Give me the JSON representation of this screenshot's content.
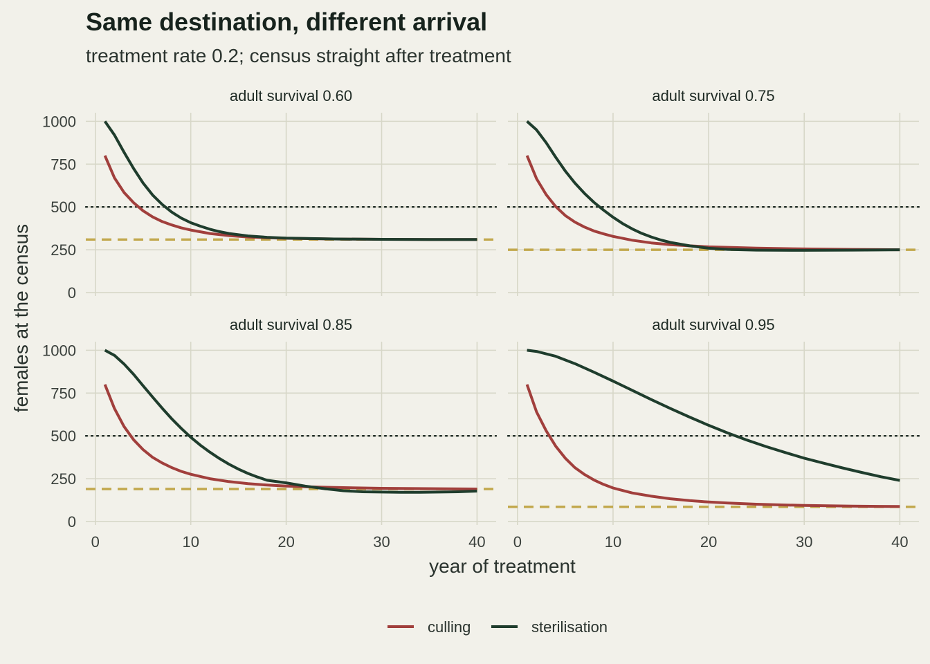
{
  "chart_data": {
    "type": "line",
    "title": "Same destination, different arrival",
    "subtitle": "treatment rate 0.2; census straight after treatment",
    "xlabel": "year of treatment",
    "ylabel": "females at the census",
    "xlim": [
      -1,
      42
    ],
    "ylim": [
      -20,
      1050
    ],
    "x_ticks": [
      0,
      10,
      20,
      30,
      40
    ],
    "y_ticks": [
      0,
      250,
      500,
      750,
      1000
    ],
    "grid": true,
    "legend_position": "bottom",
    "colors": {
      "culling": "#a13f3c",
      "sterilisation": "#1f3d2d",
      "equilibrium": "#c2a84d",
      "reference": "#1e2a24"
    },
    "reference_line": {
      "y": 500,
      "style": "dotted"
    },
    "legend": [
      {
        "key": "culling",
        "label": "culling"
      },
      {
        "key": "sterilisation",
        "label": "sterilisation"
      }
    ],
    "panels": [
      {
        "strip": "adult survival 0.60",
        "equilibrium": 310,
        "series": [
          {
            "name": "culling",
            "x": [
              1,
              2,
              3,
              4,
              5,
              6,
              7,
              8,
              9,
              10,
              12,
              14,
              16,
              18,
              20,
              25,
              30,
              35,
              40
            ],
            "y": [
              800,
              670,
              585,
              525,
              478,
              442,
              415,
              395,
              378,
              365,
              345,
              333,
              325,
              320,
              317,
              313,
              311,
              310,
              310
            ]
          },
          {
            "name": "sterilisation",
            "x": [
              1,
              2,
              3,
              4,
              5,
              6,
              7,
              8,
              9,
              10,
              11,
              12,
              13,
              14,
              16,
              18,
              20,
              25,
              30,
              35,
              40
            ],
            "y": [
              1000,
              920,
              820,
              725,
              640,
              570,
              515,
              470,
              435,
              408,
              388,
              370,
              356,
              345,
              331,
              323,
              318,
              313,
              311,
              310,
              310
            ]
          }
        ]
      },
      {
        "strip": "adult survival 0.75",
        "equilibrium": 250,
        "series": [
          {
            "name": "culling",
            "x": [
              1,
              2,
              3,
              4,
              5,
              6,
              7,
              8,
              9,
              10,
              12,
              14,
              16,
              18,
              20,
              25,
              30,
              35,
              40
            ],
            "y": [
              800,
              665,
              572,
              502,
              450,
              412,
              383,
              360,
              343,
              328,
              306,
              290,
              280,
              273,
              267,
              260,
              255,
              252,
              250
            ]
          },
          {
            "name": "sterilisation",
            "x": [
              1,
              2,
              3,
              4,
              5,
              6,
              7,
              8,
              9,
              10,
              11,
              12,
              13,
              14,
              15,
              16,
              18,
              20,
              22,
              25,
              30,
              35,
              40
            ],
            "y": [
              1000,
              950,
              875,
              790,
              710,
              640,
              580,
              527,
              482,
              440,
              403,
              372,
              346,
              325,
              307,
              293,
              273,
              259,
              252,
              248,
              247,
              248,
              250
            ]
          }
        ]
      },
      {
        "strip": "adult survival 0.85",
        "equilibrium": 190,
        "series": [
          {
            "name": "culling",
            "x": [
              1,
              2,
              3,
              4,
              5,
              6,
              7,
              8,
              9,
              10,
              12,
              14,
              16,
              18,
              20,
              22,
              25,
              30,
              35,
              40
            ],
            "y": [
              800,
              660,
              555,
              478,
              420,
              375,
              342,
              315,
              293,
              276,
              250,
              233,
              221,
              213,
              207,
              203,
              199,
              194,
              192,
              190
            ]
          },
          {
            "name": "sterilisation",
            "x": [
              1,
              2,
              3,
              4,
              5,
              6,
              7,
              8,
              9,
              10,
              11,
              12,
              13,
              14,
              15,
              16,
              17,
              18,
              20,
              22,
              24,
              26,
              28,
              30,
              32,
              34,
              36,
              38,
              40
            ],
            "y": [
              1000,
              970,
              920,
              860,
              793,
              727,
              662,
              600,
              544,
              492,
              446,
              405,
              368,
              335,
              306,
              281,
              260,
              241,
              226,
              207,
              192,
              180,
              174,
              172,
              171,
              171,
              172,
              174,
              178
            ]
          }
        ]
      },
      {
        "strip": "adult survival 0.95",
        "equilibrium": 86,
        "series": [
          {
            "name": "culling",
            "x": [
              1,
              2,
              3,
              4,
              5,
              6,
              7,
              8,
              9,
              10,
              12,
              14,
              16,
              18,
              20,
              22,
              25,
              30,
              35,
              40
            ],
            "y": [
              800,
              640,
              530,
              440,
              370,
              315,
              275,
              243,
              217,
              196,
              167,
              148,
              133,
              122,
              114,
              108,
              101,
              94,
              90,
              88
            ]
          },
          {
            "name": "sterilisation",
            "x": [
              1,
              2,
              4,
              6,
              8,
              10,
              12,
              14,
              16,
              18,
              20,
              22,
              24,
              26,
              28,
              30,
              32,
              34,
              36,
              38,
              40
            ],
            "y": [
              1000,
              993,
              965,
              922,
              872,
              820,
              766,
              712,
              660,
              610,
              562,
              517,
              476,
              438,
              403,
              370,
              341,
              313,
              287,
              262,
              240
            ]
          }
        ]
      }
    ]
  }
}
